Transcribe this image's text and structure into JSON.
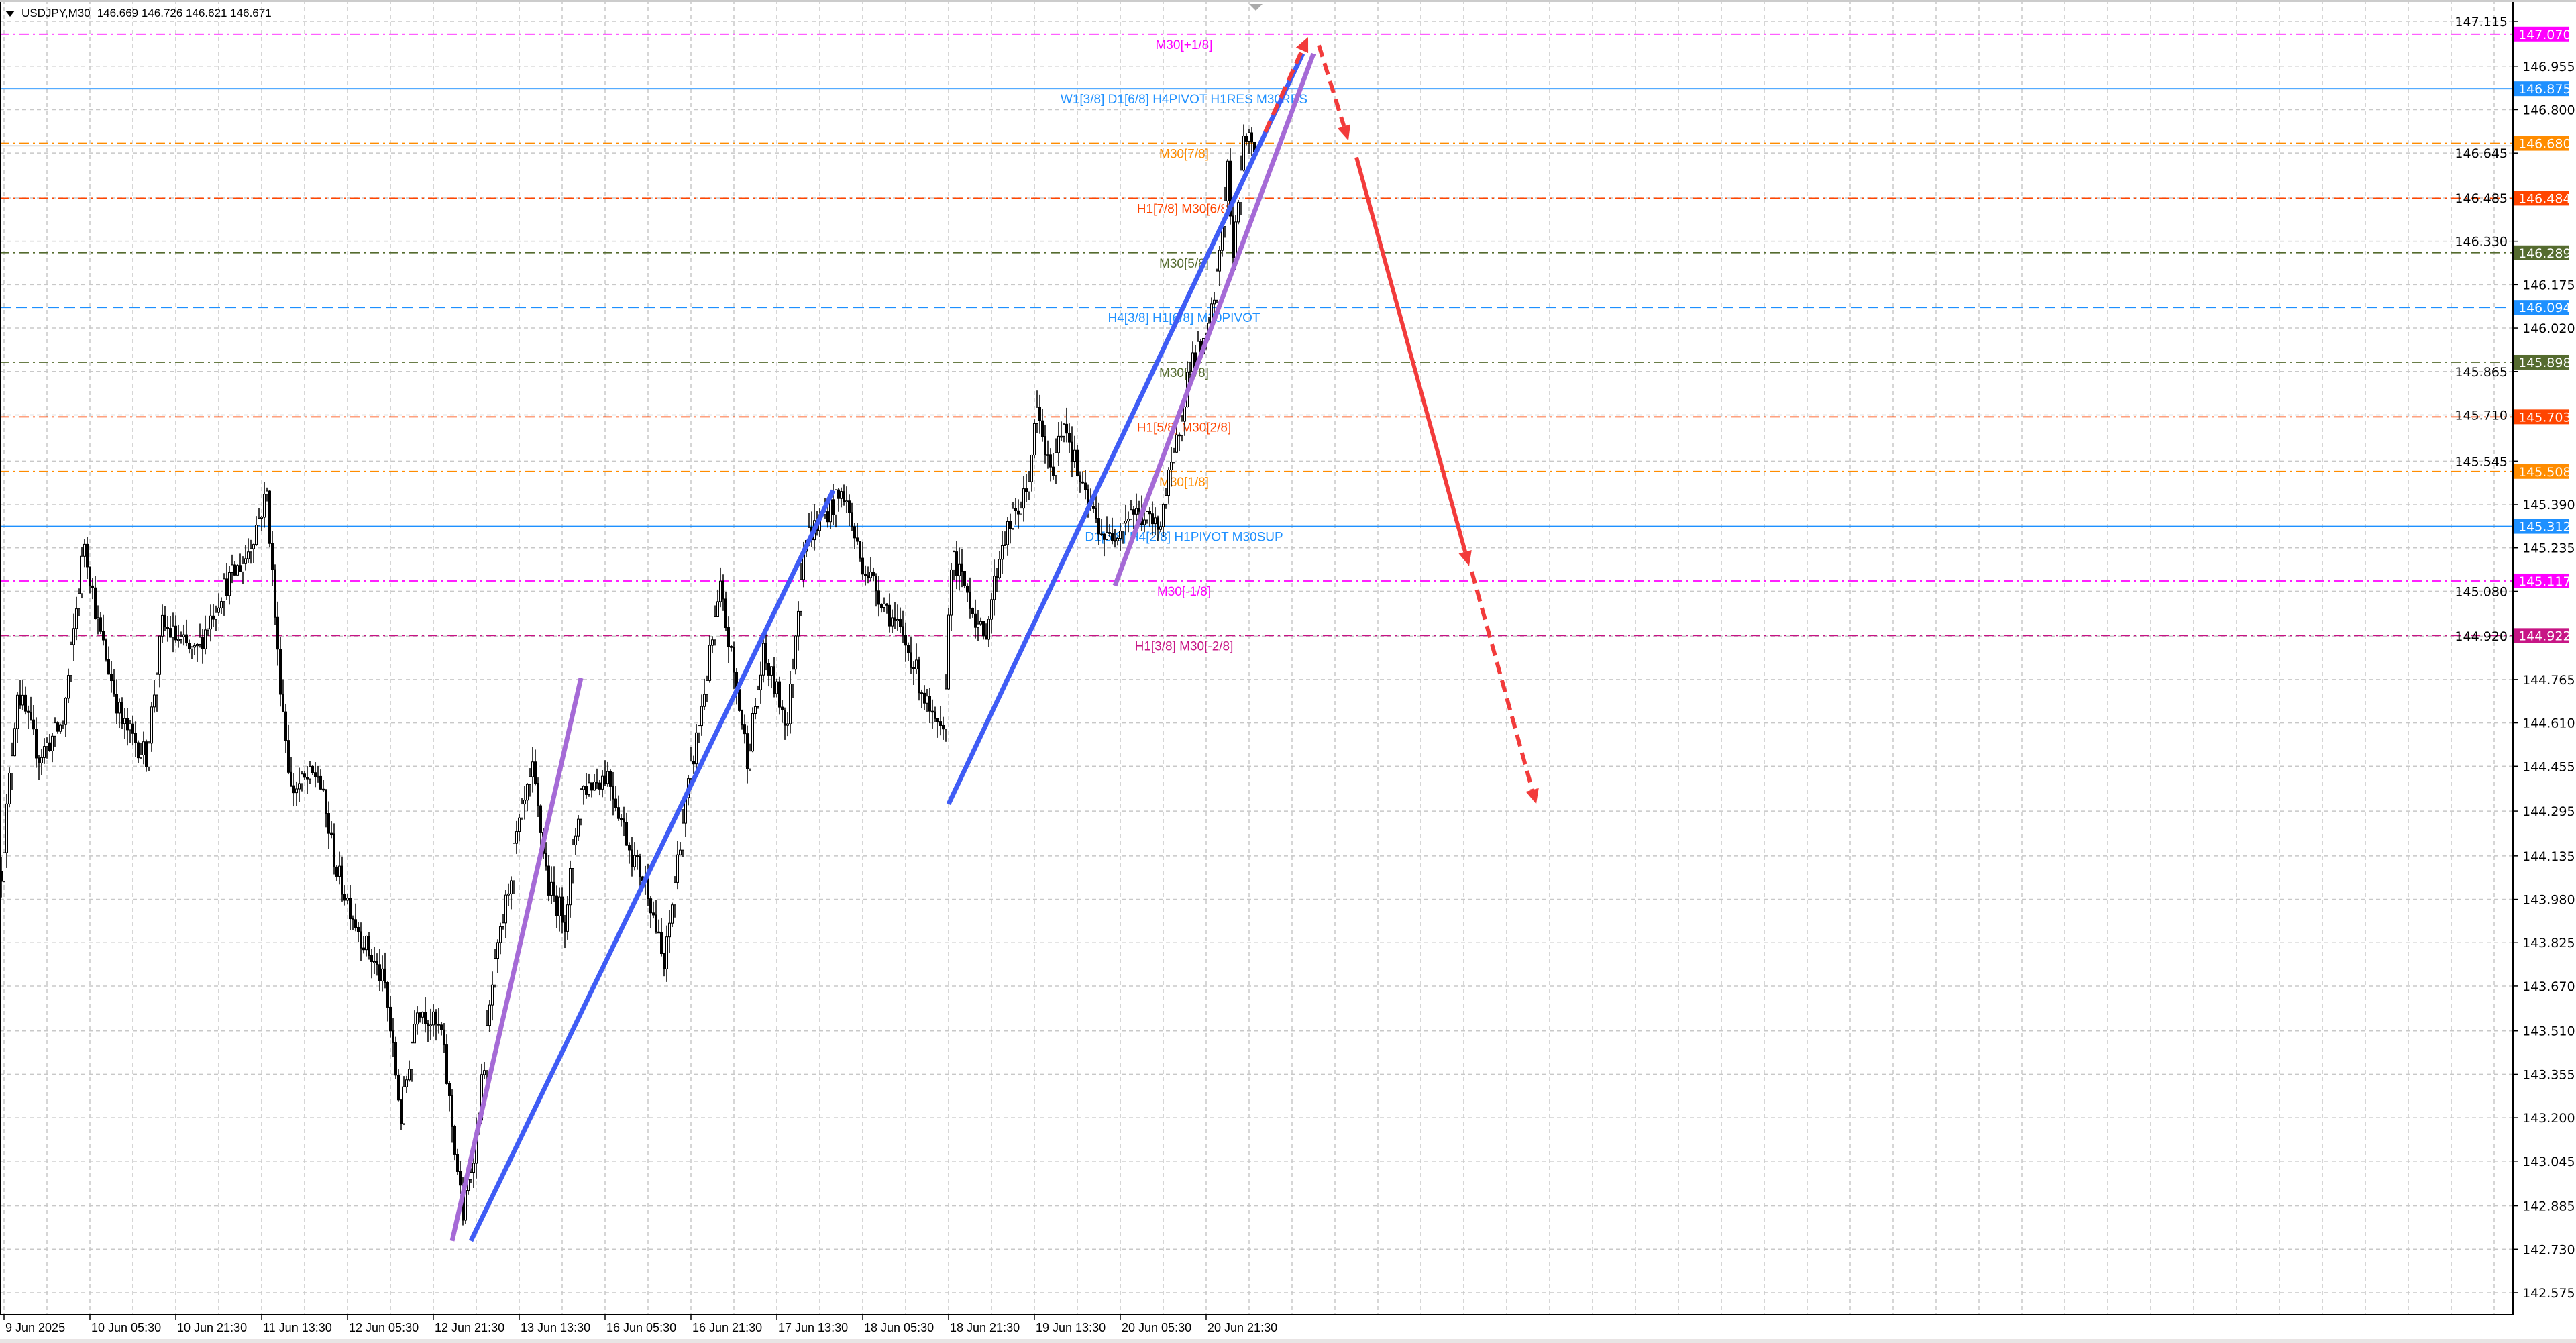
{
  "header": {
    "symbol": "USDJPY,M30",
    "ohlc": "146.669 146.726 146.621 146.671"
  },
  "colors": {
    "background": "#ffffff",
    "grid": "#c8c8c8",
    "candle_bull": "#ffffff",
    "candle_bear": "#000000",
    "blue_trend": "#3f5cf5",
    "purple_trend": "#a56ad6",
    "red_projection": "#f23b3b",
    "bid_line": "#b4b4b4"
  },
  "chart_data": {
    "type": "candlestick",
    "symbol": "USDJPY",
    "timeframe": "M30",
    "ylim": [
      142.5,
      147.19
    ],
    "y_ticks": [
      "147.115",
      "146.955",
      "146.800",
      "146.645",
      "146.485",
      "146.330",
      "146.175",
      "146.020",
      "145.865",
      "145.710",
      "145.545",
      "145.390",
      "145.235",
      "145.080",
      "144.920",
      "144.765",
      "144.610",
      "144.455",
      "144.295",
      "144.135",
      "143.980",
      "143.825",
      "143.670",
      "143.510",
      "143.355",
      "143.200",
      "143.045",
      "142.885",
      "142.730",
      "142.575"
    ],
    "x_ticks": [
      {
        "label": "9 Jun 2025",
        "time": "2025-06-09 00:00",
        "first": true
      },
      {
        "label": "10 Jun 05:30",
        "time": "2025-06-10 05:30"
      },
      {
        "label": "10 Jun 21:30",
        "time": "2025-06-10 21:30"
      },
      {
        "label": "11 Jun 13:30",
        "time": "2025-06-11 13:30"
      },
      {
        "label": "12 Jun 05:30",
        "time": "2025-06-12 05:30"
      },
      {
        "label": "12 Jun 21:30",
        "time": "2025-06-12 21:30"
      },
      {
        "label": "13 Jun 13:30",
        "time": "2025-06-13 13:30"
      },
      {
        "label": "16 Jun 05:30",
        "time": "2025-06-16 05:30"
      },
      {
        "label": "16 Jun 21:30",
        "time": "2025-06-16 21:30"
      },
      {
        "label": "17 Jun 13:30",
        "time": "2025-06-17 13:30"
      },
      {
        "label": "18 Jun 05:30",
        "time": "2025-06-18 05:30"
      },
      {
        "label": "18 Jun 21:30",
        "time": "2025-06-18 21:30"
      },
      {
        "label": "19 Jun 13:30",
        "time": "2025-06-19 13:30"
      },
      {
        "label": "20 Jun 05:30",
        "time": "2025-06-20 05:30"
      },
      {
        "label": "20 Jun 21:30",
        "time": "2025-06-20 21:30"
      }
    ],
    "price_path": [
      [
        "2025-06-09 13:00",
        144.08
      ],
      [
        "2025-06-09 16:00",
        144.73
      ],
      [
        "2025-06-09 20:00",
        144.49
      ],
      [
        "2025-06-10 00:30",
        144.61
      ],
      [
        "2025-06-10 04:30",
        145.26
      ],
      [
        "2025-06-10 07:00",
        144.96
      ],
      [
        "2025-06-10 11:30",
        144.61
      ],
      [
        "2025-06-10 16:00",
        144.49
      ],
      [
        "2025-06-10 19:00",
        144.96
      ],
      [
        "2025-06-11 01:00",
        144.85
      ],
      [
        "2025-06-11 06:00",
        145.08
      ],
      [
        "2025-06-11 10:30",
        145.2
      ],
      [
        "2025-06-11 14:30",
        145.43
      ],
      [
        "2025-06-11 16:30",
        144.85
      ],
      [
        "2025-06-11 19:00",
        144.37
      ],
      [
        "2025-06-12 00:00",
        144.43
      ],
      [
        "2025-06-12 03:30",
        144.08
      ],
      [
        "2025-06-12 08:00",
        143.85
      ],
      [
        "2025-06-12 12:30",
        143.67
      ],
      [
        "2025-06-12 15:30",
        143.2
      ],
      [
        "2025-06-12 18:30",
        143.61
      ],
      [
        "2025-06-12 23:00",
        143.5
      ],
      [
        "2025-06-13 03:00",
        142.85
      ],
      [
        "2025-06-13 05:30",
        143.14
      ],
      [
        "2025-06-13 08:30",
        143.67
      ],
      [
        "2025-06-13 13:00",
        144.2
      ],
      [
        "2025-06-13 16:00",
        144.43
      ],
      [
        "2025-06-13 19:00",
        144.02
      ],
      [
        "2025-06-13 22:00",
        143.91
      ],
      [
        "2025-06-16 01:00",
        144.37
      ],
      [
        "2025-06-16 06:00",
        144.43
      ],
      [
        "2025-06-16 10:30",
        144.14
      ],
      [
        "2025-06-16 13:30",
        144.02
      ],
      [
        "2025-06-16 16:30",
        143.73
      ],
      [
        "2025-06-16 19:30",
        144.2
      ],
      [
        "2025-06-16 22:30",
        144.55
      ],
      [
        "2025-06-17 03:00",
        145.08
      ],
      [
        "2025-06-17 08:00",
        144.49
      ],
      [
        "2025-06-17 11:00",
        144.85
      ],
      [
        "2025-06-17 15:30",
        144.61
      ],
      [
        "2025-06-17 18:30",
        145.26
      ],
      [
        "2025-06-17 23:00",
        145.37
      ],
      [
        "2025-06-18 02:00",
        145.43
      ],
      [
        "2025-06-18 05:00",
        145.2
      ],
      [
        "2025-06-18 10:00",
        145.02
      ],
      [
        "2025-06-18 14:30",
        144.85
      ],
      [
        "2025-06-18 18:30",
        144.61
      ],
      [
        "2025-06-18 20:30",
        144.55
      ],
      [
        "2025-06-18 22:00",
        145.2
      ],
      [
        "2025-06-19 01:00",
        145.08
      ],
      [
        "2025-06-19 04:00",
        144.9
      ],
      [
        "2025-06-19 07:30",
        145.26
      ],
      [
        "2025-06-19 12:00",
        145.43
      ],
      [
        "2025-06-19 14:00",
        145.72
      ],
      [
        "2025-06-19 16:30",
        145.49
      ],
      [
        "2025-06-19 19:00",
        145.7
      ],
      [
        "2025-06-19 22:30",
        145.43
      ],
      [
        "2025-06-20 03:00",
        145.26
      ],
      [
        "2025-06-20 07:30",
        145.37
      ],
      [
        "2025-06-20 12:30",
        145.31
      ],
      [
        "2025-06-20 15:30",
        145.55
      ],
      [
        "2025-06-20 18:30",
        145.9
      ],
      [
        "2025-06-20 21:30",
        145.96
      ],
      [
        "2025-06-20 23:30",
        146.19
      ],
      [
        "2025-06-23 01:30",
        146.6
      ],
      [
        "2025-06-23 02:30",
        146.25
      ],
      [
        "2025-06-23 04:30",
        146.72
      ],
      [
        "2025-06-23 06:30",
        146.671
      ]
    ],
    "levels": [
      {
        "price": 147.07,
        "price_label": "147.070",
        "label": "M30[+1/8]",
        "color": "#ff00ff",
        "style": "dashdot"
      },
      {
        "price": 146.875,
        "price_label": "146.875",
        "label": "W1[3/8] D1[6/8] H4PIVOT H1RES M30RES",
        "color": "#1e90ff",
        "style": "solid"
      },
      {
        "price": 146.68,
        "price_label": "146.680",
        "label": "M30[7/8]",
        "color": "#ff8c00",
        "style": "dashdot"
      },
      {
        "price": 146.484,
        "price_label": "146.484",
        "label": "H1[7/8] M30[6/8]",
        "color": "#ff4500",
        "style": "dashdot"
      },
      {
        "price": 146.289,
        "price_label": "146.289",
        "label": "M30[5/8]",
        "color": "#556b2f",
        "style": "dashdot"
      },
      {
        "price": 146.094,
        "price_label": "146.094",
        "label": "H4[3/8] H1[6/8] M30PIVOT",
        "color": "#1e90ff",
        "style": "dashed"
      },
      {
        "price": 145.898,
        "price_label": "145.898",
        "label": "M30[4/8]",
        "color": "#556b2f",
        "style": "dashdot"
      },
      {
        "price": 145.703,
        "price_label": "145.703",
        "label": "H1[5/8] M30[2/8]",
        "color": "#ff4500",
        "style": "dashdot"
      },
      {
        "price": 145.508,
        "price_label": "145.508",
        "label": "M30[1/8]",
        "color": "#ff8c00",
        "style": "dashdot"
      },
      {
        "price": 145.312,
        "price_label": "145.312",
        "label": "D1[5/8] H4[2/8] H1PIVOT M30SUP",
        "color": "#1e90ff",
        "style": "solid"
      },
      {
        "price": 145.117,
        "price_label": "145.117",
        "label": "M30[-1/8]",
        "color": "#ff00ff",
        "style": "dashdot"
      },
      {
        "price": 144.922,
        "price_label": "144.922",
        "label": "H1[3/8] M30[-2/8]",
        "color": "#c71585",
        "style": "dashdot"
      }
    ],
    "bid_price": 146.671,
    "trend_lines": [
      {
        "name": "blue-trend-1",
        "color": "#3f5cf5",
        "from": [
          "2025-06-13 04:30",
          142.76
        ],
        "to": [
          "2025-06-18 00:00",
          145.44
        ]
      },
      {
        "name": "blue-trend-2",
        "color": "#3f5cf5",
        "from": [
          "2025-06-18 21:30",
          144.32
        ],
        "to": [
          "2025-06-23 15:30",
          147.0
        ]
      },
      {
        "name": "purple-trend-1",
        "color": "#a56ad6",
        "from": [
          "2025-06-13 01:00",
          142.76
        ],
        "to": [
          "2025-06-16 01:00",
          144.77
        ]
      },
      {
        "name": "purple-trend-2",
        "color": "#a56ad6",
        "from": [
          "2025-06-20 04:30",
          145.1
        ],
        "to": [
          "2025-06-23 17:30",
          147.0
        ]
      }
    ],
    "projection_arrows": [
      {
        "name": "projection-up",
        "dashed": true,
        "from": [
          "2025-06-23 08:30",
          146.72
        ],
        "to": [
          "2025-06-23 16:30",
          147.06
        ]
      },
      {
        "name": "projection-down-1",
        "dashed": true,
        "from": [
          "2025-06-23 18:30",
          147.03
        ],
        "to": [
          "2025-06-24 00:00",
          146.69
        ]
      },
      {
        "name": "projection-down-2",
        "dashed": false,
        "from": [
          "2025-06-24 01:30",
          146.63
        ],
        "to": [
          "2025-06-24 22:30",
          145.17
        ]
      },
      {
        "name": "projection-down-3",
        "dashed": true,
        "from": [
          "2025-06-24 23:00",
          145.15
        ],
        "to": [
          "2025-06-25 11:00",
          144.32
        ]
      }
    ]
  }
}
